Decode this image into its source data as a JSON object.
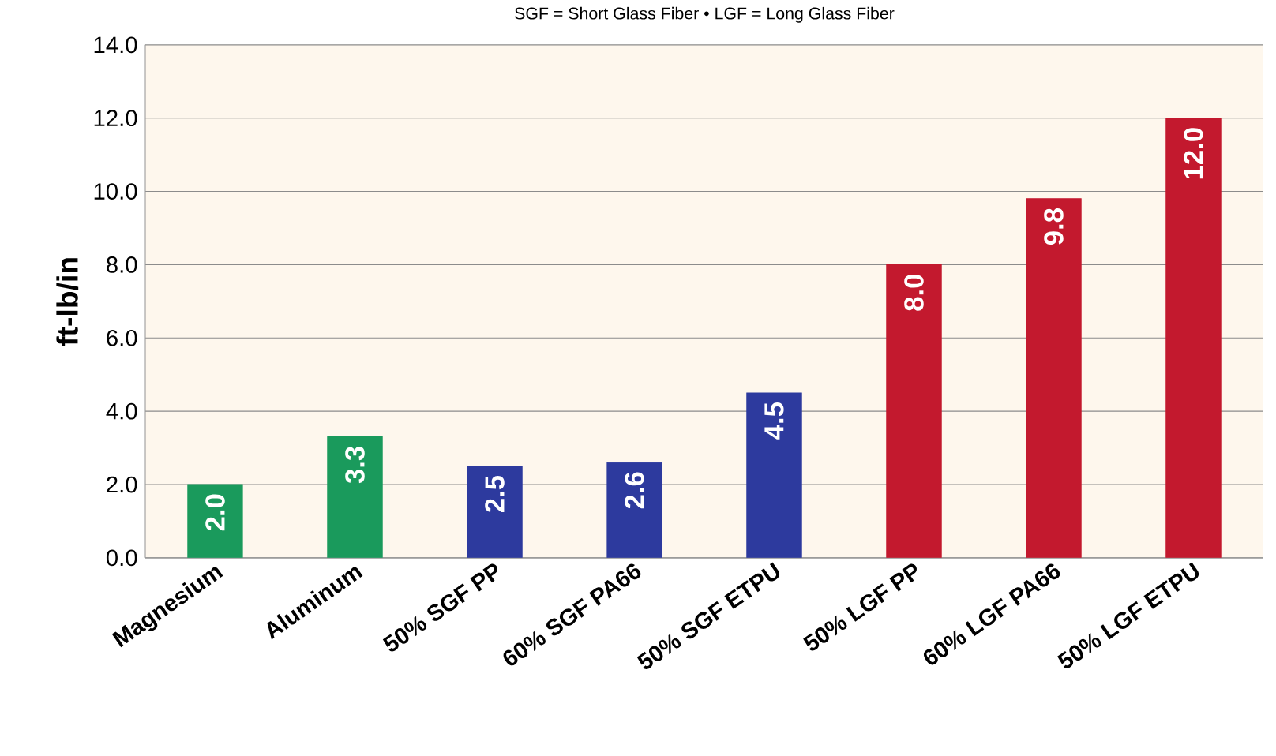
{
  "chart_data": {
    "type": "bar",
    "title": "SGF = Short Glass Fiber • LGF = Long Glass Fiber",
    "ylabel": "ft-lb/in",
    "categories": [
      "Magnesium",
      "Aluminum",
      "50% SGF PP",
      "60% SGF PA66",
      "50% SGF ETPU",
      "50% LGF PP",
      "60% LGF PA66",
      "50% LGF ETPU"
    ],
    "values": [
      2.0,
      3.3,
      2.5,
      2.6,
      4.5,
      8.0,
      9.8,
      12.0
    ],
    "value_labels": [
      "2.0",
      "3.3",
      "2.5",
      "2.6",
      "4.5",
      "8.0",
      "9.8",
      "12.0"
    ],
    "colors": [
      "#1a9a5c",
      "#1a9a5c",
      "#2d3a9e",
      "#2d3a9e",
      "#2d3a9e",
      "#c3192e",
      "#c3192e",
      "#c3192e"
    ],
    "ylim": [
      0,
      14
    ],
    "yticks": [
      {
        "value": 0,
        "label": "0.0"
      },
      {
        "value": 2,
        "label": "2.0"
      },
      {
        "value": 4,
        "label": "4.0"
      },
      {
        "value": 6,
        "label": "6.0"
      },
      {
        "value": 8,
        "label": "8.0"
      },
      {
        "value": 10,
        "label": "10.0"
      },
      {
        "value": 12,
        "label": "12.0"
      },
      {
        "value": 14,
        "label": "14.0"
      }
    ],
    "grid": "y"
  }
}
